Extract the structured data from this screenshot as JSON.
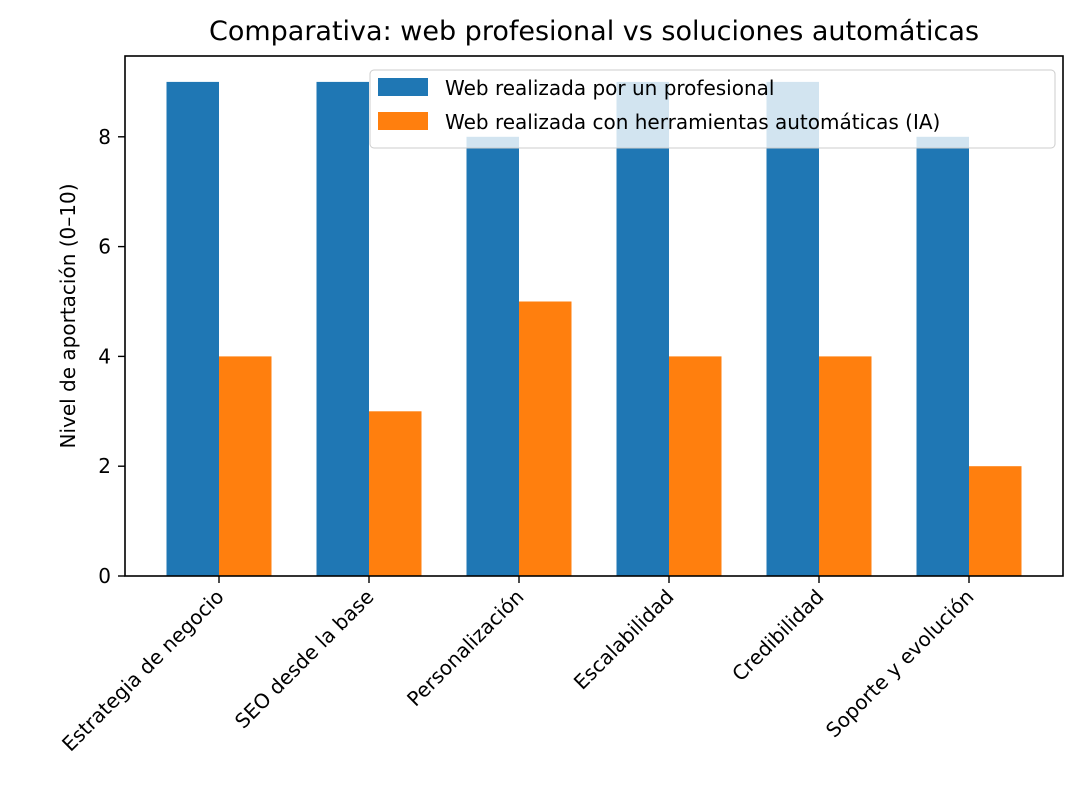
{
  "chart_data": {
    "type": "bar",
    "title": "Comparativa: web profesional vs soluciones automáticas",
    "xlabel": "",
    "ylabel": "Nivel de aportación (0–10)",
    "ylim": [
      0,
      9.45
    ],
    "yticks": [
      0,
      2,
      4,
      6,
      8
    ],
    "grid": false,
    "legend_position": "upper right",
    "categories": [
      "Estrategia de negocio",
      "SEO desde la base",
      "Personalización",
      "Escalabilidad",
      "Credibilidad",
      "Soporte y evolución"
    ],
    "series": [
      {
        "name": "Web realizada por un profesional",
        "color": "#1f77b4",
        "values": [
          9,
          9,
          8,
          9,
          9,
          8
        ]
      },
      {
        "name": "Web realizada con herramientas automáticas (IA)",
        "color": "#ff7f0e",
        "values": [
          4,
          3,
          5,
          4,
          4,
          2
        ]
      }
    ]
  }
}
